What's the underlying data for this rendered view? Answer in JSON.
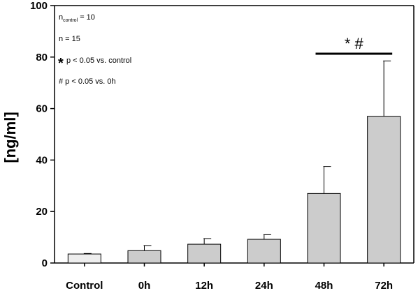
{
  "chart_data": {
    "type": "bar",
    "categories": [
      "Control",
      "0h",
      "12h",
      "24h",
      "48h",
      "72h"
    ],
    "values": [
      3.5,
      4.8,
      7.3,
      9.2,
      27.0,
      57.0
    ],
    "error_upper": [
      3.7,
      6.8,
      9.5,
      11.0,
      37.5,
      78.5
    ],
    "bar_colors": [
      "#eeeeee",
      "#cccccc",
      "#cccccc",
      "#cccccc",
      "#cccccc",
      "#cccccc"
    ],
    "ylabel": "[ng/ml]",
    "ylim": [
      0,
      100
    ],
    "yticks": [
      0,
      20,
      40,
      60,
      80,
      100
    ],
    "grid": false,
    "annotations": {
      "n_control_prefix": "n",
      "n_control_sub": "control",
      "n_control_suffix": " = 10",
      "n_total": "n = 15",
      "p_star_symbol": "*",
      "p_star_text": "p < 0.05 vs. control",
      "p_hash_text": "# p < 0.05 vs. 0h"
    },
    "significance": {
      "label": "* #",
      "from_category": "48h",
      "to_category": "72h"
    }
  }
}
